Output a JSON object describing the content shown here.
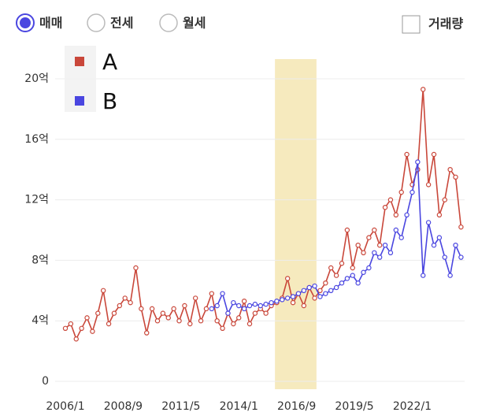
{
  "controls": {
    "radios": [
      {
        "label": "매매",
        "selected": true
      },
      {
        "label": "전세",
        "selected": false
      },
      {
        "label": "월세",
        "selected": false
      }
    ],
    "checkbox": {
      "label": "거래량",
      "checked": false
    }
  },
  "chart_data": {
    "type": "line",
    "legend": "upper left",
    "grid": true,
    "xlim": [
      "2006/1",
      "2024/6"
    ],
    "xticks": [
      "2006/1",
      "2008/9",
      "2011/5",
      "2014/1",
      "2016/9",
      "2019/5",
      "2022/1"
    ],
    "ylim": [
      0,
      20
    ],
    "yticks": [
      0,
      {
        "value": 4,
        "label": "4억"
      },
      {
        "value": 8,
        "label": "8억"
      },
      {
        "value": 12,
        "label": "12억"
      },
      {
        "value": 16,
        "label": "16억"
      },
      {
        "value": 20,
        "label": "20억"
      }
    ],
    "highlight": {
      "range": [
        "2015/9",
        "2017/8"
      ],
      "color": "#f5e6b3"
    },
    "series": [
      {
        "name": "A",
        "color": "#c9473a",
        "x": [
          "2006/1",
          "2006/4",
          "2006/7",
          "2006/10",
          "2007/1",
          "2007/4",
          "2007/7",
          "2007/10",
          "2008/1",
          "2008/4",
          "2008/7",
          "2008/10",
          "2009/1",
          "2009/4",
          "2009/7",
          "2009/10",
          "2010/1",
          "2010/4",
          "2010/7",
          "2010/10",
          "2011/1",
          "2011/4",
          "2011/7",
          "2011/10",
          "2012/1",
          "2012/4",
          "2012/7",
          "2012/10",
          "2013/1",
          "2013/4",
          "2013/7",
          "2013/10",
          "2014/1",
          "2014/4",
          "2014/7",
          "2014/10",
          "2015/1",
          "2015/4",
          "2015/7",
          "2015/10",
          "2016/1",
          "2016/4",
          "2016/7",
          "2016/10",
          "2017/1",
          "2017/4",
          "2017/7",
          "2017/10",
          "2018/1",
          "2018/4",
          "2018/7",
          "2018/10",
          "2019/1",
          "2019/4",
          "2019/7",
          "2019/10",
          "2020/1",
          "2020/4",
          "2020/7",
          "2020/10",
          "2021/1",
          "2021/4",
          "2021/7",
          "2021/10",
          "2022/1",
          "2022/4",
          "2022/7",
          "2022/10",
          "2023/1",
          "2023/4",
          "2023/7",
          "2023/10",
          "2024/1",
          "2024/4"
        ],
        "values": [
          3.5,
          3.8,
          2.8,
          3.5,
          4.2,
          3.3,
          4.5,
          6.0,
          3.8,
          4.5,
          5.0,
          5.5,
          5.2,
          7.5,
          4.8,
          3.2,
          4.8,
          4.0,
          4.5,
          4.2,
          4.8,
          4.0,
          5.0,
          3.8,
          5.5,
          4.0,
          4.8,
          5.8,
          4.0,
          3.5,
          4.5,
          3.8,
          4.2,
          5.3,
          3.8,
          4.5,
          4.8,
          4.5,
          5.0,
          5.2,
          5.5,
          6.8,
          5.2,
          5.8,
          5.0,
          6.2,
          5.5,
          6.0,
          6.5,
          7.5,
          7.0,
          7.8,
          10.0,
          7.5,
          9.0,
          8.5,
          9.5,
          10.0,
          9.0,
          11.5,
          12.0,
          11.0,
          12.5,
          15.0,
          13.0,
          14.0,
          19.3,
          13.0,
          15.0,
          11.0,
          12.0,
          14.0,
          13.5,
          10.2
        ]
      },
      {
        "name": "B",
        "color": "#4a46e0",
        "x": [
          "2012/10",
          "2013/1",
          "2013/4",
          "2013/7",
          "2013/10",
          "2014/1",
          "2014/4",
          "2014/7",
          "2014/10",
          "2015/1",
          "2015/4",
          "2015/7",
          "2015/10",
          "2016/1",
          "2016/4",
          "2016/7",
          "2016/10",
          "2017/1",
          "2017/4",
          "2017/7",
          "2017/10",
          "2018/1",
          "2018/4",
          "2018/7",
          "2018/10",
          "2019/1",
          "2019/4",
          "2019/7",
          "2019/10",
          "2020/1",
          "2020/4",
          "2020/7",
          "2020/10",
          "2021/1",
          "2021/4",
          "2021/7",
          "2021/10",
          "2022/1",
          "2022/4",
          "2022/7",
          "2022/10",
          "2023/1",
          "2023/4",
          "2023/7",
          "2023/10",
          "2024/1",
          "2024/4"
        ],
        "values": [
          4.8,
          5.0,
          5.8,
          4.5,
          5.2,
          5.0,
          4.8,
          5.0,
          5.1,
          5.0,
          5.1,
          5.2,
          5.3,
          5.4,
          5.5,
          5.6,
          5.8,
          6.0,
          6.2,
          6.3,
          5.6,
          5.8,
          6.0,
          6.2,
          6.5,
          6.8,
          7.0,
          6.5,
          7.2,
          7.5,
          8.5,
          8.2,
          9.0,
          8.5,
          10.0,
          9.5,
          11.0,
          12.5,
          14.5,
          7.0,
          10.5,
          9.0,
          9.5,
          8.2,
          7.0,
          9.0,
          8.2
        ]
      }
    ]
  }
}
